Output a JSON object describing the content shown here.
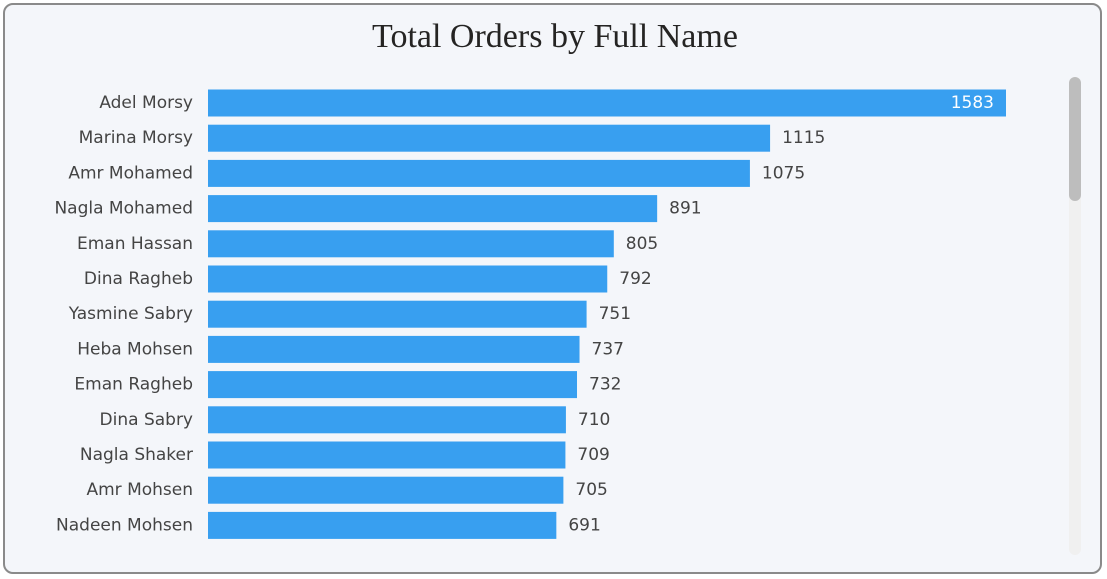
{
  "chart_data": {
    "type": "bar",
    "orientation": "horizontal",
    "title": "Total Orders by Full Name",
    "categories": [
      "Adel Morsy",
      "Marina Morsy",
      "Amr Mohamed",
      "Nagla Mohamed",
      "Eman Hassan",
      "Dina Ragheb",
      "Yasmine Sabry",
      "Heba Mohsen",
      "Eman Ragheb",
      "Dina Sabry",
      "Nagla Shaker",
      "Amr Mohsen",
      "Nadeen Mohsen"
    ],
    "values": [
      1583,
      1115,
      1075,
      891,
      805,
      792,
      751,
      737,
      732,
      710,
      709,
      705,
      691
    ],
    "color": "#389ff0"
  }
}
